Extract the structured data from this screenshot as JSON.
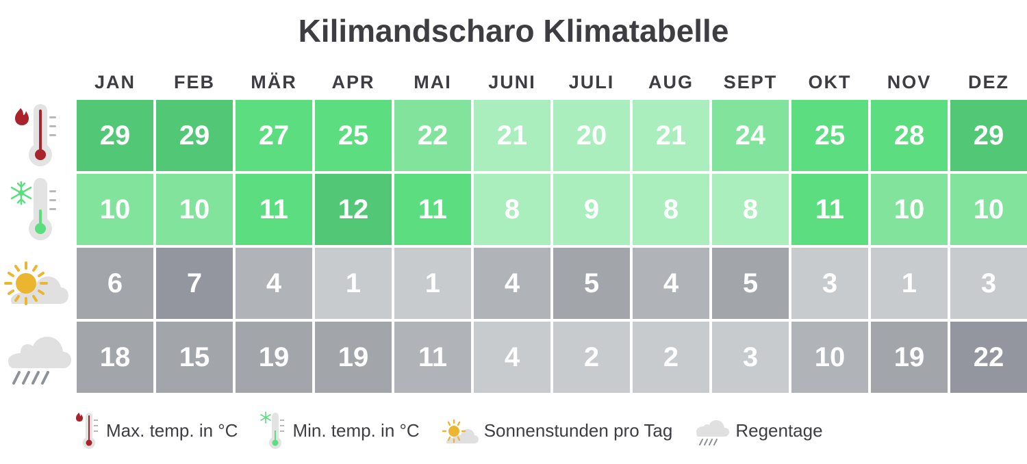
{
  "title": "Kilimandscharo Klimatabelle",
  "months": [
    "JAN",
    "FEB",
    "MÄR",
    "APR",
    "MAI",
    "JUNI",
    "JULI",
    "AUG",
    "SEPT",
    "OKT",
    "NOV",
    "DEZ"
  ],
  "rows": [
    {
      "key": "max_temp",
      "icon": "thermometer-hot-icon",
      "values": [
        "29",
        "29",
        "27",
        "25",
        "22",
        "21",
        "20",
        "21",
        "24",
        "25",
        "28",
        "29"
      ],
      "colors": [
        "#52c776",
        "#52c776",
        "#5cdd80",
        "#5cdd80",
        "#82e49c",
        "#aaeebe",
        "#aaeebe",
        "#aaeebe",
        "#82e49c",
        "#5cdd80",
        "#5cdd80",
        "#52c776"
      ]
    },
    {
      "key": "min_temp",
      "icon": "thermometer-cold-icon",
      "values": [
        "10",
        "10",
        "11",
        "12",
        "11",
        "8",
        "9",
        "8",
        "8",
        "11",
        "10",
        "10"
      ],
      "colors": [
        "#82e49c",
        "#82e49c",
        "#5cdd80",
        "#52c776",
        "#5cdd80",
        "#aaeebe",
        "#aaeebe",
        "#aaeebe",
        "#aaeebe",
        "#5cdd80",
        "#82e49c",
        "#82e49c"
      ]
    },
    {
      "key": "sunshine",
      "icon": "sun-cloud-icon",
      "values": [
        "6",
        "7",
        "4",
        "1",
        "1",
        "4",
        "5",
        "4",
        "5",
        "3",
        "1",
        "3"
      ],
      "colors": [
        "#a2a5aa",
        "#93969e",
        "#b0b3b8",
        "#c8cbce",
        "#c8cbce",
        "#b0b3b8",
        "#a2a5aa",
        "#b0b3b8",
        "#a2a5aa",
        "#c8cbce",
        "#c8cbce",
        "#c8cbce"
      ]
    },
    {
      "key": "rain_days",
      "icon": "rain-cloud-icon",
      "values": [
        "18",
        "15",
        "19",
        "19",
        "11",
        "4",
        "2",
        "2",
        "3",
        "10",
        "19",
        "22"
      ],
      "colors": [
        "#a2a5aa",
        "#a2a5aa",
        "#a2a5aa",
        "#a2a5aa",
        "#b0b3b8",
        "#c8cbce",
        "#c8cbce",
        "#c8cbce",
        "#c8cbce",
        "#b0b3b8",
        "#a2a5aa",
        "#93969e"
      ]
    }
  ],
  "legend": {
    "max_temp": "Max. temp. in °C",
    "min_temp": "Min. temp. in °C",
    "sunshine": "Sonnenstunden pro Tag",
    "rain_days": "Regentage"
  },
  "colors": {
    "fire": "#a8232a",
    "snow": "#5cdd80",
    "sun": "#ebb52f",
    "cloud": "#e0e0e0",
    "rain": "#8e9198",
    "text": "#3d3d42"
  },
  "chart_data": {
    "type": "table",
    "title": "Kilimandscharo Klimatabelle",
    "categories": [
      "JAN",
      "FEB",
      "MÄR",
      "APR",
      "MAI",
      "JUNI",
      "JULI",
      "AUG",
      "SEPT",
      "OKT",
      "NOV",
      "DEZ"
    ],
    "series": [
      {
        "name": "Max. temp. in °C",
        "values": [
          29,
          29,
          27,
          25,
          22,
          21,
          20,
          21,
          24,
          25,
          28,
          29
        ]
      },
      {
        "name": "Min. temp. in °C",
        "values": [
          10,
          10,
          11,
          12,
          11,
          8,
          9,
          8,
          8,
          11,
          10,
          10
        ]
      },
      {
        "name": "Sonnenstunden pro Tag",
        "values": [
          6,
          7,
          4,
          1,
          1,
          4,
          5,
          4,
          5,
          3,
          1,
          3
        ]
      },
      {
        "name": "Regentage",
        "values": [
          18,
          15,
          19,
          19,
          11,
          4,
          2,
          2,
          3,
          10,
          19,
          22
        ]
      }
    ],
    "legend_position": "bottom"
  }
}
